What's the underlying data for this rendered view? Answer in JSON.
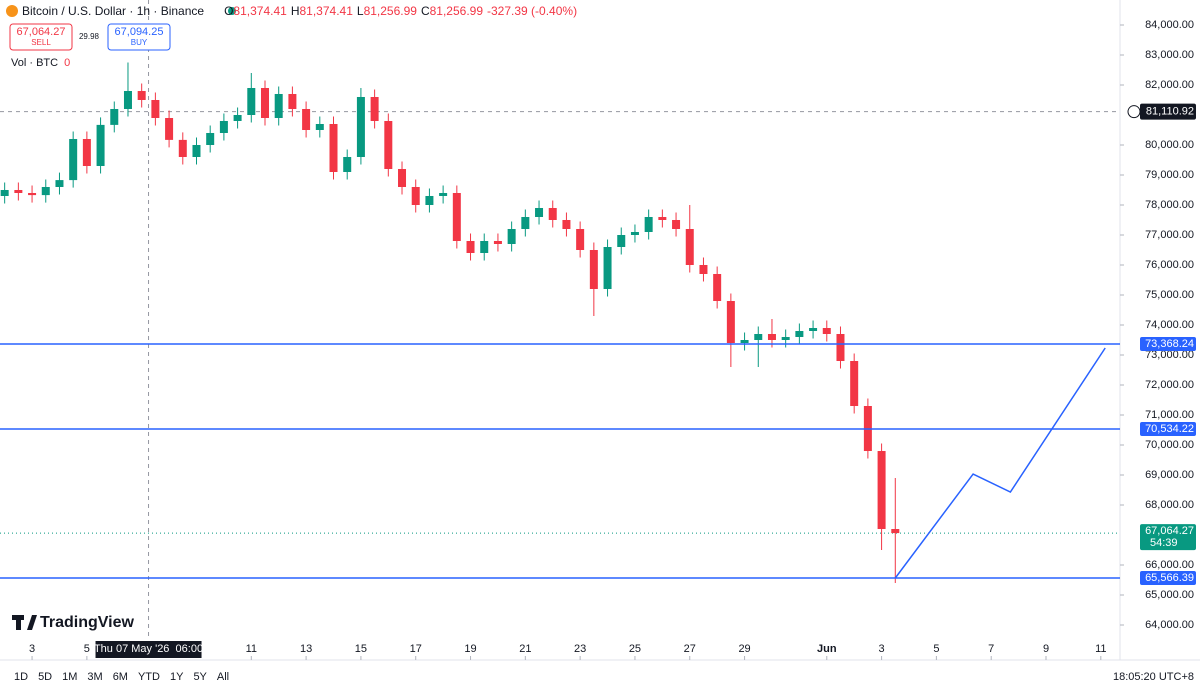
{
  "header": {
    "symbol": "Bitcoin / U.S. Dollar · 1h · Binance",
    "ohlc": [
      {
        "key": "O",
        "value": "81,374.41"
      },
      {
        "key": "H",
        "value": "81,374.41"
      },
      {
        "key": "L",
        "value": "81,256.99"
      },
      {
        "key": "C",
        "value": "81,256.99"
      }
    ],
    "change": "-327.39 (-0.40%)",
    "sell": {
      "price": "67,064.27",
      "label": "SELL"
    },
    "spread": "29.98",
    "buy": {
      "price": "67,094.25",
      "label": "BUY"
    },
    "volume": {
      "label": "Vol · BTC",
      "value": "0"
    }
  },
  "logo": "TradingView",
  "toolbar": {
    "ranges": [
      "1D",
      "5D",
      "1M",
      "3M",
      "6M",
      "YTD",
      "1Y",
      "5Y",
      "All"
    ],
    "clock": "18:05:20 UTC+8"
  },
  "chart_data": {
    "type": "candlestick",
    "x": [
      2,
      2.5,
      3,
      3.5,
      4,
      4.5,
      5,
      5.5,
      6,
      6.5,
      7,
      7.5,
      8,
      8.5,
      9,
      9.5,
      10,
      10.5,
      11,
      11.5,
      12,
      12.5,
      13,
      13.5,
      14,
      14.5,
      15,
      15.5,
      16,
      16.5,
      17,
      17.5,
      18,
      18.5,
      19,
      19.5,
      20,
      20.5,
      21,
      21.5,
      22,
      22.5,
      23,
      23.5,
      24,
      24.5,
      25,
      25.5,
      26,
      26.5,
      27,
      27.5,
      28,
      28.5,
      29,
      29.5,
      30,
      30.5,
      31,
      31.5,
      32,
      32.5,
      33,
      33.5,
      34,
      34.5
    ],
    "open": [
      78300,
      78500,
      78400,
      78330,
      78600,
      78830,
      80200,
      79300,
      80670,
      81200,
      81800,
      81500,
      80900,
      80170,
      79600,
      80000,
      80400,
      80800,
      81000,
      81900,
      80900,
      81700,
      81200,
      80500,
      80700,
      79100,
      79600,
      81600,
      80800,
      79200,
      78600,
      78000,
      78300,
      78400,
      76800,
      76400,
      76800,
      76700,
      77200,
      77600,
      77900,
      77500,
      77200,
      76500,
      75200,
      76600,
      77000,
      77100,
      77600,
      77500,
      77200,
      76000,
      75700,
      74800,
      73400,
      73500,
      73700,
      73500,
      73600,
      73800,
      73900,
      73700,
      72800,
      71300,
      69800,
      67200
    ],
    "high": [
      78750,
      78750,
      78650,
      78850,
      79080,
      80450,
      80450,
      80920,
      81450,
      82750,
      82050,
      81750,
      81150,
      80420,
      80250,
      80650,
      81050,
      81250,
      82400,
      82150,
      81950,
      81950,
      81450,
      80950,
      80950,
      79850,
      81900,
      81850,
      81050,
      79450,
      78850,
      78550,
      78650,
      78650,
      77050,
      77050,
      77050,
      77450,
      77850,
      78150,
      78150,
      77750,
      77450,
      76750,
      76850,
      77250,
      77350,
      77850,
      77850,
      77750,
      78000,
      76250,
      75950,
      75050,
      73750,
      73950,
      74200,
      73850,
      74050,
      74150,
      74150,
      73950,
      73050,
      71550,
      70050,
      68900
    ],
    "low": [
      78050,
      78150,
      78080,
      78080,
      78350,
      78580,
      79050,
      79050,
      80420,
      80950,
      81250,
      80650,
      79920,
      79350,
      79350,
      79750,
      80150,
      80550,
      80750,
      80650,
      80650,
      80950,
      80250,
      80250,
      78850,
      78850,
      79350,
      80550,
      78950,
      78350,
      77750,
      77750,
      78050,
      76550,
      76150,
      76150,
      76450,
      76450,
      76950,
      77350,
      77250,
      76950,
      76250,
      74300,
      74950,
      76350,
      76750,
      76850,
      77250,
      76950,
      75750,
      75450,
      74550,
      72600,
      73150,
      72600,
      73250,
      73250,
      73350,
      73550,
      73450,
      72550,
      71050,
      69550,
      66500,
      65400
    ],
    "close": [
      78500,
      78400,
      78330,
      78600,
      78830,
      80200,
      79300,
      80670,
      81200,
      81800,
      81500,
      80900,
      80170,
      79600,
      80000,
      80400,
      80800,
      81000,
      81900,
      80900,
      81700,
      81200,
      80500,
      80700,
      79100,
      79600,
      81600,
      80800,
      79200,
      78600,
      78000,
      78300,
      78400,
      76800,
      76400,
      76800,
      76700,
      77200,
      77600,
      77900,
      77500,
      77200,
      76500,
      75200,
      76600,
      77000,
      77100,
      77600,
      77500,
      77200,
      76000,
      75700,
      74800,
      73400,
      73500,
      73700,
      73500,
      73600,
      73800,
      73900,
      73700,
      72800,
      71300,
      69800,
      67200,
      67064.27
    ],
    "up_color": "#089981",
    "down_color": "#f23645",
    "xlim": [
      1.83,
      42.7
    ],
    "ylim": [
      63167,
      84833
    ],
    "xticks": [
      3,
      5,
      11,
      13,
      15,
      17,
      19,
      21,
      23,
      25,
      27,
      29,
      {
        "value": 32,
        "label": "Jun"
      },
      {
        "value": 34,
        "label": "3"
      },
      {
        "value": 36,
        "label": "5"
      },
      {
        "value": 38,
        "label": "7"
      },
      {
        "value": 40,
        "label": "9"
      },
      {
        "value": 42,
        "label": "11"
      }
    ],
    "yticks": [
      {
        "value": 84000,
        "label": "84,000.00"
      },
      {
        "value": 83000,
        "label": "83,000.00"
      },
      {
        "value": 82000,
        "label": "82,000.00"
      },
      {
        "value": 80000,
        "label": "80,000.00"
      },
      {
        "value": 79000,
        "label": "79,000.00"
      },
      {
        "value": 78000,
        "label": "78,000.00"
      },
      {
        "value": 77000,
        "label": "77,000.00"
      },
      {
        "value": 76000,
        "label": "76,000.00"
      },
      {
        "value": 75000,
        "label": "75,000.00"
      },
      {
        "value": 74000,
        "label": "74,000.00"
      },
      {
        "value": 73000,
        "label": "73,000.00"
      },
      {
        "value": 72000,
        "label": "72,000.00"
      },
      {
        "value": 71000,
        "label": "71,000.00"
      },
      {
        "value": 70000,
        "label": "70,000.00"
      },
      {
        "value": 69000,
        "label": "69,000.00"
      },
      {
        "value": 68000,
        "label": "68,000.00"
      },
      {
        "value": 66000,
        "label": "66,000.00"
      },
      {
        "value": 65000,
        "label": "65,000.00"
      },
      {
        "value": 64000,
        "label": "64,000.00"
      }
    ],
    "levels": [
      {
        "value": 73368.24,
        "label": "73,368.24"
      },
      {
        "value": 70534.22,
        "label": "70,534.22"
      },
      {
        "value": 65566.39,
        "label": "65,566.39"
      }
    ],
    "level_color": "#2962ff",
    "last_price": {
      "value": 67064.27,
      "label": "67,064.27",
      "countdown": "54:39"
    },
    "crosshair": {
      "x": 7.25,
      "label": "Thu 07 May '26  06:00",
      "price": {
        "value": 81110.92,
        "label": "81,110.92"
      }
    },
    "projection": {
      "x": [
        34.5,
        37.34,
        38.7,
        42.16
      ],
      "y": [
        65567,
        69033,
        68433,
        73233
      ]
    }
  }
}
